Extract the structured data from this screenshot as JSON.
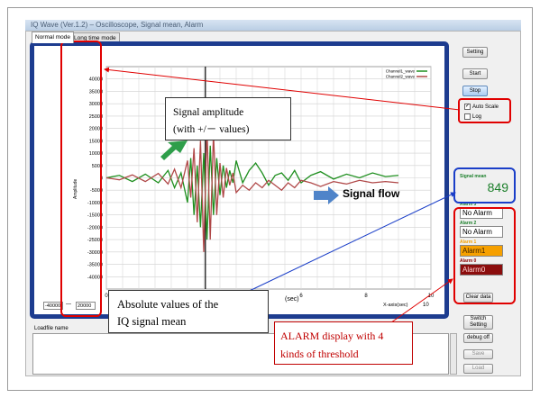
{
  "window": {
    "title": "IQ Wave (Ver.1.2) – Oscilloscope, Signal mean, Alarm"
  },
  "tabs": [
    {
      "label": "Normal mode"
    },
    {
      "label": "Long time mode"
    }
  ],
  "buttons": {
    "setting": "Setting",
    "start": "Start",
    "stop": "Stop",
    "clear_data": "Clear data",
    "switch_setting": "Switch Setting",
    "debug_off": "debug off",
    "save": "Save",
    "load": "Load"
  },
  "checkboxes": {
    "auto_scale": "Auto Scale",
    "auto_scale_checked": true,
    "log": "Log",
    "log_checked": false
  },
  "signal_mean": {
    "label": "Signal mean",
    "value": "849"
  },
  "alarms": [
    {
      "label": "Alarm 3",
      "value": "No Alarm",
      "color": "#1b7f2a",
      "bg": "#ffffff",
      "fg": "#000000"
    },
    {
      "label": "Alarm 2",
      "value": "No Alarm",
      "color": "#1b7f2a",
      "bg": "#ffffff",
      "fg": "#000000"
    },
    {
      "label": "Alarm 1",
      "value": "Alarm1",
      "color": "#f3a000",
      "bg": "#f6a000",
      "fg": "#3a1f00"
    },
    {
      "label": "Alarm 0",
      "value": "Alarm0",
      "color": "#8b0000",
      "bg": "#8b0d0d",
      "fg": "#ffd7d7"
    }
  ],
  "y_range": {
    "min": "-40000",
    "sep": "—",
    "max": "20000"
  },
  "x_range": {
    "label": "X-axis(sec)",
    "value": "10"
  },
  "loadfile": {
    "label": "Loadfile name"
  },
  "callouts": {
    "signal_amplitude_line1": "Signal amplitude",
    "signal_amplitude_line2": "(with +/－ values)",
    "signal_flow": "Signal flow",
    "absolute_values_line1": "Absolute values of the",
    "absolute_values_line2": "IQ signal mean",
    "alarm_line1": "ALARM display with 4",
    "alarm_line2": "kinds of threshold"
  },
  "chart_data": {
    "type": "line",
    "title": "",
    "xlabel": "(sec)",
    "ylabel": "Amplitude",
    "xlim": [
      0,
      10
    ],
    "ylim": [
      -45000,
      45000
    ],
    "x_ticks": [
      0,
      2,
      4,
      6,
      8,
      10
    ],
    "y_ticks": [
      40000,
      35000,
      30000,
      25000,
      20000,
      15000,
      10000,
      5000,
      0,
      -5000,
      -10000,
      -15000,
      -20000,
      -25000,
      -30000,
      -35000,
      -40000
    ],
    "grid": true,
    "marker_x": 3.05,
    "legend_position": "top-right",
    "series": [
      {
        "name": "Channel1_wave",
        "color": "#1f8f1f",
        "x": [
          0.0,
          0.4,
          0.8,
          1.2,
          1.6,
          1.9,
          2.1,
          2.3,
          2.5,
          2.6,
          2.7,
          2.8,
          2.9,
          3.0,
          3.1,
          3.2,
          3.3,
          3.4,
          3.5,
          3.6,
          3.7,
          3.8,
          3.9,
          4.0,
          4.2,
          4.4,
          4.6,
          4.8,
          5.0,
          5.2,
          5.4,
          5.6,
          5.8,
          6.0,
          6.3,
          6.6,
          7.0,
          7.4,
          7.8,
          8.2,
          8.6,
          9.0
        ],
        "values": [
          0,
          1000,
          -1500,
          1500,
          -2000,
          3000,
          -4000,
          2000,
          -10000,
          8000,
          -15000,
          5000,
          -20000,
          10000,
          -25000,
          13000,
          -15000,
          8000,
          -7000,
          5000,
          -4000,
          3000,
          -2000,
          7000,
          -2000,
          3000,
          6000,
          2000,
          -3000,
          1000,
          2000,
          -1000,
          3000,
          -2000,
          1000,
          2500,
          -500,
          1500,
          0,
          2000,
          500,
          1000
        ]
      },
      {
        "name": "Channel2_wave",
        "color": "#b04848",
        "x": [
          0.0,
          0.4,
          0.8,
          1.2,
          1.6,
          1.9,
          2.1,
          2.3,
          2.5,
          2.6,
          2.7,
          2.8,
          2.9,
          3.0,
          3.1,
          3.2,
          3.3,
          3.4,
          3.5,
          3.6,
          3.7,
          3.8,
          3.9,
          4.0,
          4.2,
          4.4,
          4.6,
          4.8,
          5.0,
          5.2,
          5.4,
          5.6,
          5.8,
          6.0,
          6.3,
          6.6,
          7.0,
          7.4,
          7.8,
          8.2,
          8.6,
          9.0
        ],
        "values": [
          0,
          -800,
          1200,
          -1500,
          1800,
          -2500,
          3500,
          -4000,
          7000,
          -8000,
          12000,
          -18000,
          15000,
          -30000,
          20000,
          -25000,
          18000,
          -15000,
          6000,
          -8000,
          4000,
          -3000,
          2000,
          -6000,
          -3000,
          -5000,
          -2000,
          -4000,
          -1000,
          -3000,
          -5000,
          -2000,
          -4000,
          -1000,
          -2000,
          -3500,
          -1500,
          -2500,
          -1000,
          -2000,
          -1500,
          -2000
        ]
      }
    ]
  }
}
